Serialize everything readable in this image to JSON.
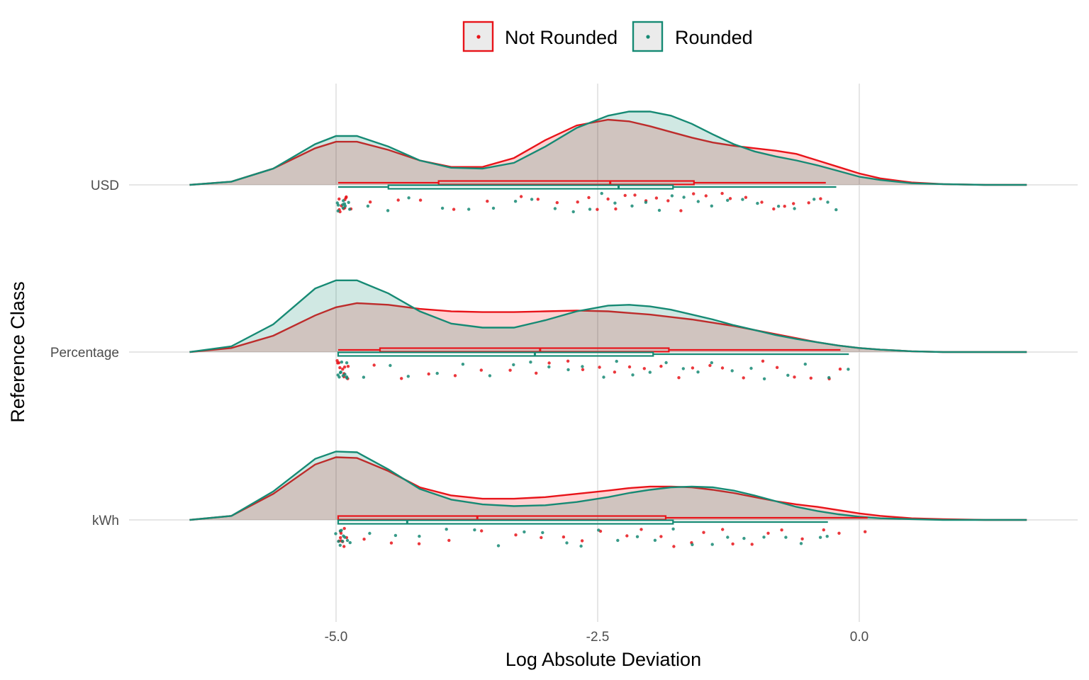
{
  "chart_data": {
    "type": "raincloud",
    "xlabel": "Log Absolute Deviation",
    "ylabel": "Reference Class",
    "x_ticks": [
      -5.0,
      -2.5,
      0.0
    ],
    "x_tick_labels": [
      "-5.0",
      "-2.5",
      "0.0"
    ],
    "xlim": [
      -6.6,
      1.8
    ],
    "categories": [
      "USD",
      "Percentage",
      "kWh"
    ],
    "legend": {
      "position": "top",
      "entries": [
        "Not Rounded",
        "Rounded"
      ]
    },
    "grid": true,
    "colors": {
      "Not Rounded": "#e8141a",
      "Rounded": "#168a74"
    },
    "series": [
      {
        "name": "Not Rounded",
        "color": "#e8141a",
        "groups": [
          {
            "category": "USD",
            "density_x": [
              -6.4,
              -6.0,
              -5.6,
              -5.2,
              -5.0,
              -4.8,
              -4.5,
              -4.2,
              -3.9,
              -3.6,
              -3.3,
              -3.0,
              -2.7,
              -2.4,
              -2.2,
              -2.0,
              -1.8,
              -1.6,
              -1.4,
              -1.2,
              -1.0,
              -0.8,
              -0.6,
              -0.4,
              -0.2,
              0.0,
              0.2,
              0.5,
              0.8,
              1.2,
              1.6
            ],
            "density_y": [
              0.0,
              0.04,
              0.2,
              0.45,
              0.53,
              0.53,
              0.43,
              0.3,
              0.22,
              0.22,
              0.33,
              0.55,
              0.73,
              0.8,
              0.78,
              0.72,
              0.65,
              0.58,
              0.52,
              0.48,
              0.45,
              0.42,
              0.38,
              0.3,
              0.22,
              0.14,
              0.08,
              0.03,
              0.01,
              0.0,
              0.0
            ],
            "box": {
              "min": -4.98,
              "q1": -4.02,
              "median": -2.38,
              "q3": -1.58,
              "max": -0.32
            },
            "points": [
              -4.98,
              -4.97,
              -4.96,
              -4.95,
              -4.94,
              -4.93,
              -4.92,
              -4.91,
              -4.9,
              -4.88,
              -4.65,
              -4.42,
              -4.18,
              -3.9,
              -3.55,
              -3.25,
              -3.05,
              -2.88,
              -2.72,
              -2.6,
              -2.5,
              -2.42,
              -2.33,
              -2.25,
              -2.15,
              -2.05,
              -1.95,
              -1.82,
              -1.7,
              -1.58,
              -1.45,
              -1.32,
              -1.22,
              -1.08,
              -0.95,
              -0.82,
              -0.72,
              -0.6,
              -0.48,
              -0.38
            ]
          },
          {
            "category": "Percentage",
            "density_x": [
              -6.4,
              -6.0,
              -5.6,
              -5.2,
              -5.0,
              -4.8,
              -4.5,
              -4.2,
              -3.9,
              -3.6,
              -3.3,
              -3.0,
              -2.7,
              -2.4,
              -2.2,
              -2.0,
              -1.8,
              -1.6,
              -1.4,
              -1.2,
              -1.0,
              -0.8,
              -0.6,
              -0.4,
              -0.2,
              0.0,
              0.2,
              0.5,
              0.8,
              1.2,
              1.6
            ],
            "density_y": [
              0.0,
              0.05,
              0.2,
              0.45,
              0.55,
              0.6,
              0.58,
              0.53,
              0.5,
              0.49,
              0.49,
              0.5,
              0.51,
              0.5,
              0.48,
              0.46,
              0.43,
              0.4,
              0.36,
              0.32,
              0.27,
              0.22,
              0.17,
              0.12,
              0.08,
              0.05,
              0.03,
              0.01,
              0.0,
              0.0,
              0.0
            ],
            "box": {
              "min": -4.98,
              "q1": -4.58,
              "median": -3.05,
              "q3": -1.82,
              "max": -0.18
            },
            "points": [
              -4.98,
              -4.97,
              -4.96,
              -4.95,
              -4.94,
              -4.93,
              -4.92,
              -4.91,
              -4.9,
              -4.88,
              -4.62,
              -4.38,
              -4.1,
              -3.85,
              -3.6,
              -3.35,
              -3.1,
              -2.95,
              -2.8,
              -2.62,
              -2.48,
              -2.35,
              -2.2,
              -2.05,
              -1.9,
              -1.75,
              -1.6,
              -1.45,
              -1.28,
              -1.1,
              -0.95,
              -0.78,
              -0.6,
              -0.45,
              -0.3,
              -0.2
            ]
          },
          {
            "category": "kWh",
            "density_x": [
              -6.4,
              -6.0,
              -5.6,
              -5.2,
              -5.0,
              -4.8,
              -4.5,
              -4.2,
              -3.9,
              -3.6,
              -3.3,
              -3.0,
              -2.7,
              -2.4,
              -2.2,
              -2.0,
              -1.8,
              -1.6,
              -1.4,
              -1.2,
              -1.0,
              -0.8,
              -0.6,
              -0.4,
              -0.2,
              0.0,
              0.2,
              0.5,
              0.8,
              1.2,
              1.6
            ],
            "density_y": [
              0.0,
              0.05,
              0.32,
              0.68,
              0.77,
              0.76,
              0.6,
              0.4,
              0.3,
              0.26,
              0.26,
              0.28,
              0.32,
              0.36,
              0.39,
              0.41,
              0.41,
              0.4,
              0.37,
              0.33,
              0.28,
              0.23,
              0.19,
              0.16,
              0.12,
              0.08,
              0.05,
              0.02,
              0.01,
              0.0,
              0.0
            ],
            "box": {
              "min": -4.98,
              "q1": -4.98,
              "median": -3.65,
              "q3": -1.85,
              "max": 0.08
            },
            "points": [
              -4.98,
              -4.97,
              -4.96,
              -4.95,
              -4.94,
              -4.93,
              -4.92,
              -4.91,
              -4.9,
              -4.75,
              -4.5,
              -4.22,
              -3.95,
              -3.62,
              -3.3,
              -3.05,
              -2.85,
              -2.62,
              -2.45,
              -2.25,
              -2.08,
              -1.92,
              -1.78,
              -1.62,
              -1.48,
              -1.32,
              -1.18,
              -1.02,
              -0.88,
              -0.72,
              -0.55,
              -0.35,
              -0.18,
              0.08
            ]
          }
        ]
      },
      {
        "name": "Rounded",
        "color": "#168a74",
        "groups": [
          {
            "category": "USD",
            "density_x": [
              -6.4,
              -6.0,
              -5.6,
              -5.2,
              -5.0,
              -4.8,
              -4.5,
              -4.2,
              -3.9,
              -3.6,
              -3.3,
              -3.0,
              -2.7,
              -2.4,
              -2.2,
              -2.0,
              -1.8,
              -1.6,
              -1.4,
              -1.2,
              -1.0,
              -0.8,
              -0.6,
              -0.4,
              -0.2,
              0.0,
              0.2,
              0.5,
              0.8,
              1.2,
              1.6
            ],
            "density_y": [
              0.0,
              0.04,
              0.2,
              0.5,
              0.6,
              0.6,
              0.47,
              0.3,
              0.21,
              0.2,
              0.27,
              0.47,
              0.7,
              0.85,
              0.9,
              0.9,
              0.85,
              0.75,
              0.62,
              0.5,
              0.41,
              0.35,
              0.3,
              0.24,
              0.17,
              0.1,
              0.06,
              0.02,
              0.01,
              0.0,
              0.0
            ],
            "box": {
              "min": -4.98,
              "q1": -4.5,
              "median": -2.3,
              "q3": -1.78,
              "max": -0.22
            },
            "points": [
              -4.98,
              -4.97,
              -4.96,
              -4.95,
              -4.94,
              -4.93,
              -4.92,
              -4.91,
              -4.9,
              -4.88,
              -4.7,
              -4.48,
              -4.28,
              -3.98,
              -3.72,
              -3.48,
              -3.28,
              -3.1,
              -2.92,
              -2.75,
              -2.58,
              -2.45,
              -2.32,
              -2.18,
              -2.05,
              -1.92,
              -1.8,
              -1.68,
              -1.55,
              -1.4,
              -1.25,
              -1.1,
              -0.95,
              -0.8,
              -0.62,
              -0.45,
              -0.3,
              -0.2
            ]
          },
          {
            "category": "Percentage",
            "density_x": [
              -6.4,
              -6.0,
              -5.6,
              -5.2,
              -5.0,
              -4.8,
              -4.5,
              -4.2,
              -3.9,
              -3.6,
              -3.3,
              -3.0,
              -2.7,
              -2.4,
              -2.2,
              -2.0,
              -1.8,
              -1.6,
              -1.4,
              -1.2,
              -1.0,
              -0.8,
              -0.6,
              -0.4,
              -0.2,
              0.0,
              0.2,
              0.5,
              0.8,
              1.2,
              1.6
            ],
            "density_y": [
              0.0,
              0.07,
              0.34,
              0.78,
              0.88,
              0.88,
              0.72,
              0.5,
              0.35,
              0.3,
              0.3,
              0.39,
              0.5,
              0.57,
              0.58,
              0.56,
              0.52,
              0.46,
              0.4,
              0.33,
              0.27,
              0.21,
              0.16,
              0.12,
              0.08,
              0.05,
              0.03,
              0.01,
              0.0,
              0.0,
              0.0
            ],
            "box": {
              "min": -4.98,
              "q1": -4.98,
              "median": -3.1,
              "q3": -1.97,
              "max": -0.1
            },
            "points": [
              -4.98,
              -4.97,
              -4.96,
              -4.95,
              -4.94,
              -4.93,
              -4.92,
              -4.91,
              -4.9,
              -4.88,
              -4.72,
              -4.5,
              -4.3,
              -4.05,
              -3.8,
              -3.55,
              -3.32,
              -3.12,
              -2.95,
              -2.78,
              -2.62,
              -2.45,
              -2.3,
              -2.15,
              -2.0,
              -1.85,
              -1.7,
              -1.55,
              -1.4,
              -1.22,
              -1.05,
              -0.88,
              -0.7,
              -0.5,
              -0.3,
              -0.1
            ]
          },
          {
            "category": "kWh",
            "density_x": [
              -6.4,
              -6.0,
              -5.6,
              -5.2,
              -5.0,
              -4.8,
              -4.5,
              -4.2,
              -3.9,
              -3.6,
              -3.3,
              -3.0,
              -2.7,
              -2.4,
              -2.2,
              -2.0,
              -1.8,
              -1.6,
              -1.4,
              -1.2,
              -1.0,
              -0.8,
              -0.6,
              -0.4,
              -0.2,
              0.0,
              0.2,
              0.5,
              0.8,
              1.2,
              1.6
            ],
            "density_y": [
              0.0,
              0.05,
              0.35,
              0.75,
              0.84,
              0.83,
              0.62,
              0.38,
              0.25,
              0.19,
              0.17,
              0.18,
              0.22,
              0.28,
              0.33,
              0.37,
              0.4,
              0.41,
              0.4,
              0.36,
              0.3,
              0.23,
              0.16,
              0.11,
              0.07,
              0.04,
              0.02,
              0.01,
              0.0,
              0.0,
              0.0
            ],
            "box": {
              "min": -4.98,
              "q1": -4.98,
              "median": -4.32,
              "q3": -1.78,
              "max": -0.3
            },
            "points": [
              -4.98,
              -4.97,
              -4.96,
              -4.95,
              -4.94,
              -4.93,
              -4.92,
              -4.91,
              -4.9,
              -4.85,
              -4.65,
              -4.42,
              -4.2,
              -3.92,
              -3.7,
              -3.45,
              -3.22,
              -3.0,
              -2.82,
              -2.65,
              -2.48,
              -2.3,
              -2.12,
              -1.95,
              -1.78,
              -1.6,
              -1.42,
              -1.25,
              -1.08,
              -0.9,
              -0.72,
              -0.55,
              -0.4,
              -0.3
            ]
          }
        ]
      }
    ]
  }
}
